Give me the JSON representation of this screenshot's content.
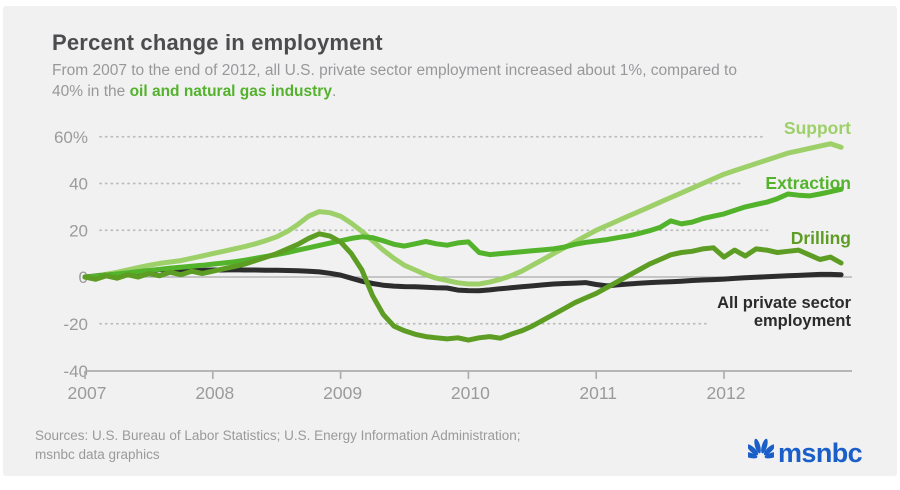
{
  "header": {
    "title": "Percent change in employment",
    "subtitle_line1": "From 2007 to the end of 2012, all U.S. private sector employment increased about 1%, compared to",
    "subtitle_line2_prefix": "40% in the ",
    "subtitle_line2_highlight": "oil and natural gas industry",
    "subtitle_line2_suffix": "."
  },
  "footer": {
    "sources_line1": "Sources: U.S. Bureau of Labor Statistics; U.S. Energy Information Administration;",
    "sources_line2": "msnbc data graphics",
    "brand": "msnbc",
    "brand_color": "#1a5fc8"
  },
  "chart_data": {
    "type": "line",
    "x_unit": "month",
    "x_start": "2007-01",
    "x_end": "2012-12",
    "x_tick_labels": [
      "2007",
      "2008",
      "2009",
      "2010",
      "2011",
      "2012"
    ],
    "y_tick_labels": [
      "60%",
      "40",
      "20",
      "0",
      "-20",
      "-40"
    ],
    "y_tick_values": [
      60,
      40,
      20,
      0,
      -20,
      -40
    ],
    "ylim": [
      -40,
      60
    ],
    "grid": "dotted-horizontal",
    "zero_line": true,
    "legend_position": "right-end-of-lines",
    "axis_color": "#aeaeae",
    "tick_label_color": "#9b9b9b",
    "series": [
      {
        "name": "Support",
        "color": "#9ed06a",
        "values": [
          0,
          0.5,
          1.2,
          2,
          3,
          4,
          5,
          5.8,
          6.4,
          7,
          8,
          9,
          10,
          11,
          12,
          13,
          14.2,
          15.6,
          17.2,
          19.5,
          22.5,
          26,
          28,
          27.5,
          26,
          23,
          19.5,
          15.5,
          11.5,
          8,
          5,
          3,
          1,
          -0.5,
          -1.5,
          -2.5,
          -3,
          -3,
          -2.2,
          -1,
          0.5,
          2.5,
          5,
          7.5,
          10,
          12.5,
          15,
          17.5,
          20,
          22,
          24,
          26,
          28,
          30,
          32,
          34,
          36,
          38,
          40,
          42,
          44,
          45.5,
          47,
          48.5,
          50,
          51.5,
          53,
          54,
          55,
          56,
          57,
          55.5
        ]
      },
      {
        "name": "Extraction",
        "color": "#53b32b",
        "values": [
          0,
          0.3,
          0.8,
          1.3,
          1.8,
          2.3,
          2.8,
          3.3,
          3.8,
          4.2,
          4.6,
          5,
          5.5,
          6,
          6.5,
          7.2,
          8,
          8.8,
          9.6,
          10.5,
          11.5,
          12.5,
          13.5,
          14.5,
          15.5,
          16.5,
          17.2,
          16.8,
          15.5,
          14,
          13.2,
          14.2,
          15.2,
          14.2,
          13.6,
          14.6,
          15,
          10.5,
          9.6,
          10,
          10.4,
          10.8,
          11.2,
          11.6,
          12,
          12.8,
          14,
          14.8,
          15.4,
          16,
          16.8,
          17.6,
          18.6,
          19.8,
          21.2,
          24,
          22.7,
          23.5,
          25,
          26,
          27,
          28.5,
          30,
          31,
          32,
          33.5,
          35.5,
          35,
          34.7,
          35.5,
          36.5,
          37.5
        ]
      },
      {
        "name": "Drilling",
        "color": "#5d9d24",
        "values": [
          0,
          -1,
          0.5,
          -0.5,
          1,
          0,
          1.5,
          0.5,
          2,
          1,
          2.5,
          1.5,
          2.5,
          3.5,
          4.5,
          5.5,
          7,
          8.5,
          10,
          12,
          14,
          16.5,
          18.5,
          17.5,
          15,
          10,
          3,
          -8,
          -16,
          -21,
          -23,
          -24.5,
          -25.5,
          -26,
          -26.5,
          -26,
          -27,
          -26,
          -25.5,
          -26.2,
          -24.5,
          -23,
          -21,
          -18.5,
          -16,
          -13.5,
          -11,
          -9,
          -7,
          -4.5,
          -2,
          0.5,
          3,
          5.5,
          7.5,
          9.5,
          10.5,
          11,
          12,
          12.5,
          8.5,
          11.5,
          9,
          12,
          11.5,
          10.5,
          11,
          11.5,
          9.5,
          7.5,
          8.5,
          6
        ]
      },
      {
        "name": "All private sector employment",
        "label_lines": [
          "All private sector",
          "employment"
        ],
        "color": "#2d2d2d",
        "values": [
          0,
          0.4,
          0.8,
          1.2,
          1.6,
          2,
          2.5,
          3.2,
          2.6,
          2.4,
          2.7,
          2.9,
          3,
          3,
          3.1,
          3,
          3,
          2.9,
          2.9,
          2.8,
          2.7,
          2.5,
          2.2,
          1.6,
          0.8,
          -0.5,
          -1.8,
          -2.8,
          -3.5,
          -3.9,
          -4.1,
          -4.2,
          -4.4,
          -4.6,
          -4.7,
          -5.6,
          -5.8,
          -5.9,
          -5.5,
          -5,
          -4.6,
          -4.2,
          -3.8,
          -3.4,
          -3,
          -2.8,
          -2.6,
          -2.4,
          -3.2,
          -3.8,
          -3.4,
          -3,
          -2.7,
          -2.4,
          -2.2,
          -2,
          -1.8,
          -1.5,
          -1.3,
          -1.1,
          -0.9,
          -0.6,
          -0.3,
          -0.1,
          0.1,
          0.3,
          0.5,
          0.7,
          0.9,
          1.1,
          1.1,
          1
        ]
      }
    ]
  }
}
